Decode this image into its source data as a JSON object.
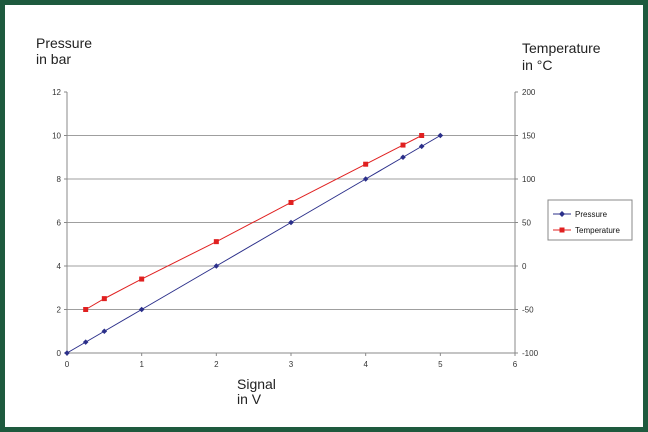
{
  "colors": {
    "frame": "#1e5a3e",
    "pressure": "#2b2f8a",
    "temperature": "#e02020",
    "grid": "#7f7f7f"
  },
  "chart_data": {
    "type": "line",
    "title": "",
    "xlabel": [
      "Signal",
      "in V"
    ],
    "ylabel_left": [
      "Pressure",
      "in bar"
    ],
    "ylabel_right": [
      "Temperature",
      "in °C"
    ],
    "xlim": [
      0,
      6
    ],
    "ylim_left": [
      0,
      12
    ],
    "ylim_right": [
      -100,
      200
    ],
    "x_ticks": [
      "0",
      "1",
      "2",
      "3",
      "4",
      "5",
      "6"
    ],
    "y_ticks_left": [
      "0",
      "2",
      "4",
      "6",
      "8",
      "10",
      "12"
    ],
    "y_ticks_right": [
      "-100",
      "-50",
      "0",
      "50",
      "100",
      "150",
      "200"
    ],
    "grid": "horizontal",
    "legend": "right",
    "series": [
      {
        "name": "Pressure",
        "axis": "left",
        "marker": "diamond",
        "x": [
          0,
          0.25,
          0.5,
          1,
          2,
          3,
          4,
          4.5,
          4.75,
          5
        ],
        "y": [
          0,
          0.5,
          1,
          2,
          4,
          6,
          8,
          9,
          9.5,
          10
        ]
      },
      {
        "name": "Temperature",
        "axis": "right",
        "marker": "square",
        "x": [
          0.25,
          0.5,
          1,
          2,
          3,
          4,
          4.5,
          4.75
        ],
        "y": [
          -50,
          -37.5,
          -15,
          28,
          73,
          117,
          139,
          150
        ]
      }
    ]
  }
}
